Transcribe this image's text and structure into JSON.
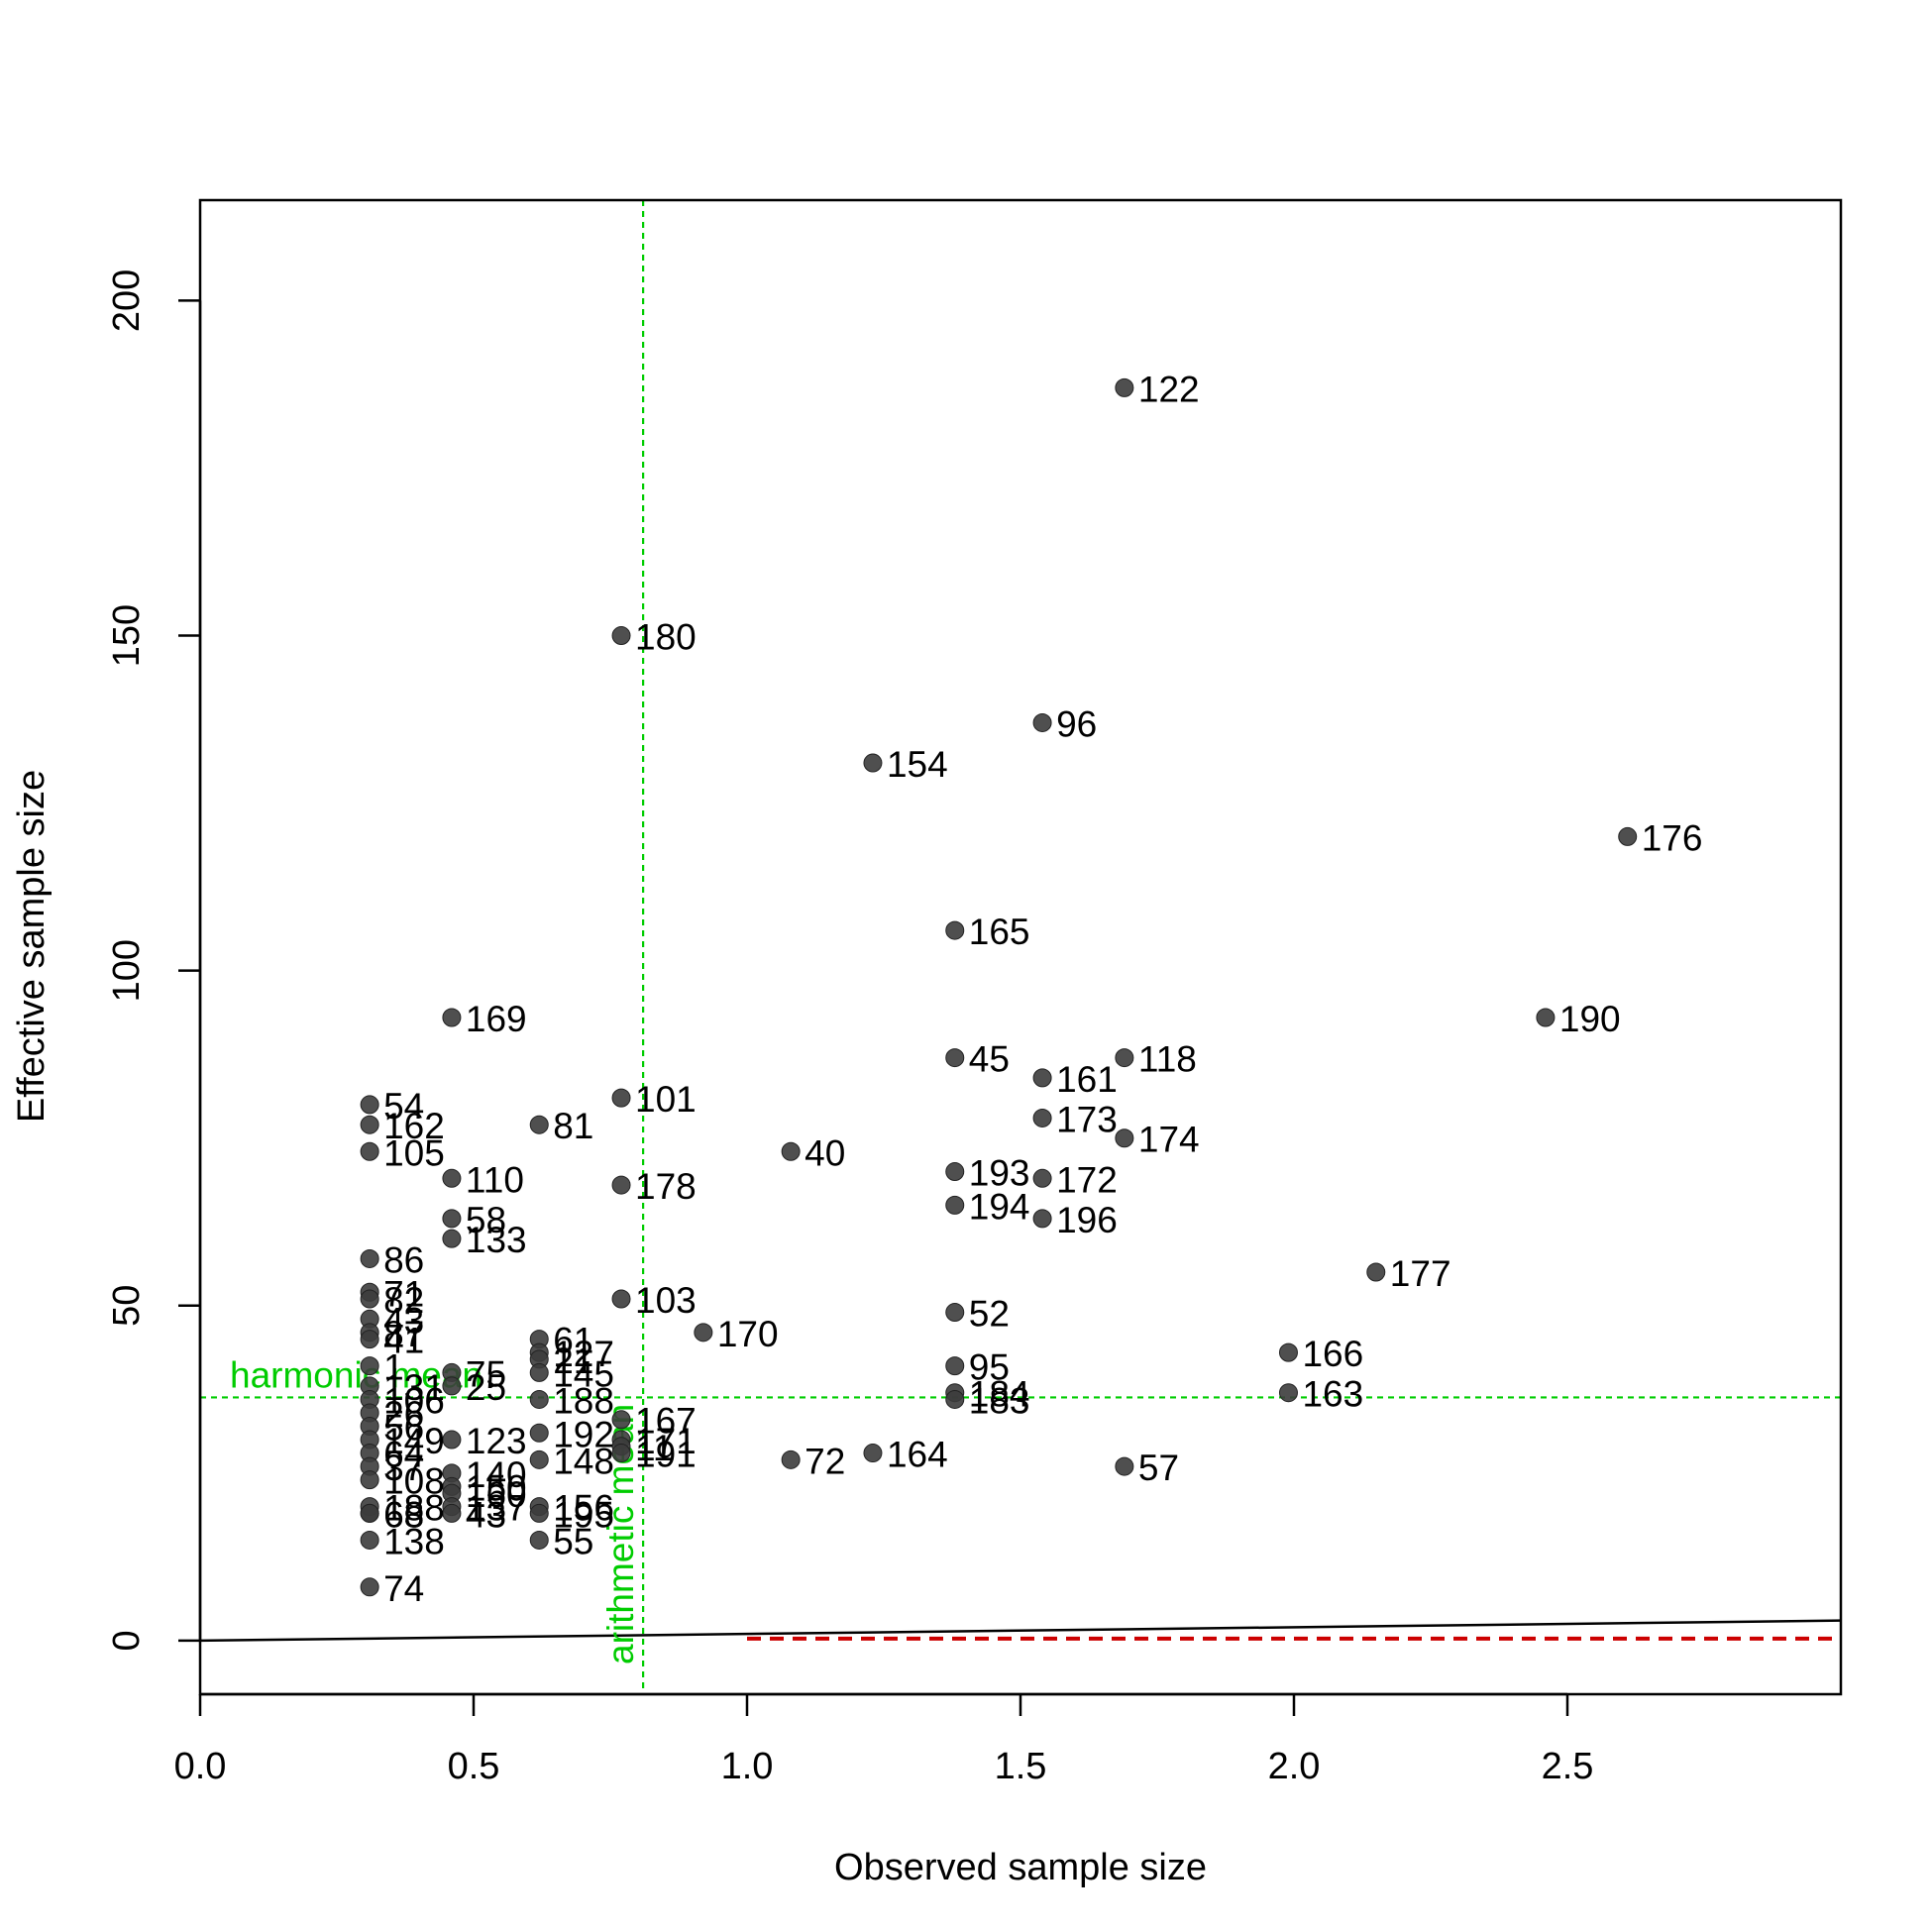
{
  "chart_data": {
    "type": "scatter",
    "title": "",
    "xlabel": "Observed sample size",
    "ylabel": "Effective sample size",
    "xlim": [
      0,
      3.0
    ],
    "ylim": [
      -8,
      215
    ],
    "xticks": [
      0.0,
      0.5,
      1.0,
      1.5,
      2.0,
      2.5
    ],
    "xtick_labels": [
      "0.0",
      "0.5",
      "1.0",
      "1.5",
      "2.0",
      "2.5"
    ],
    "yticks": [
      0,
      50,
      100,
      150,
      200
    ],
    "ytick_labels": [
      "0",
      "50",
      "100",
      "150",
      "200"
    ],
    "grid": false,
    "point_color": "#3c3c3c",
    "reference_color": "#00cc00",
    "points": [
      {
        "id": "122",
        "x": 1.69,
        "y": 187
      },
      {
        "id": "180",
        "x": 0.77,
        "y": 150
      },
      {
        "id": "96",
        "x": 1.54,
        "y": 137
      },
      {
        "id": "154",
        "x": 1.23,
        "y": 131
      },
      {
        "id": "176",
        "x": 2.61,
        "y": 120
      },
      {
        "id": "165",
        "x": 1.38,
        "y": 106
      },
      {
        "id": "169",
        "x": 0.46,
        "y": 93
      },
      {
        "id": "190",
        "x": 2.46,
        "y": 93
      },
      {
        "id": "45",
        "x": 1.38,
        "y": 87
      },
      {
        "id": "118",
        "x": 1.69,
        "y": 87
      },
      {
        "id": "161",
        "x": 1.54,
        "y": 84
      },
      {
        "id": "101",
        "x": 0.77,
        "y": 81
      },
      {
        "id": "54",
        "x": 0.31,
        "y": 80
      },
      {
        "id": "173",
        "x": 1.54,
        "y": 78
      },
      {
        "id": "81",
        "x": 0.62,
        "y": 77
      },
      {
        "id": "162",
        "x": 0.31,
        "y": 77
      },
      {
        "id": "174",
        "x": 1.69,
        "y": 75
      },
      {
        "id": "40",
        "x": 1.08,
        "y": 73
      },
      {
        "id": "105",
        "x": 0.31,
        "y": 73
      },
      {
        "id": "110",
        "x": 0.46,
        "y": 69
      },
      {
        "id": "193",
        "x": 1.38,
        "y": 70
      },
      {
        "id": "172",
        "x": 1.54,
        "y": 69
      },
      {
        "id": "178",
        "x": 0.77,
        "y": 68
      },
      {
        "id": "194",
        "x": 1.38,
        "y": 65
      },
      {
        "id": "58",
        "x": 0.46,
        "y": 63
      },
      {
        "id": "196",
        "x": 1.54,
        "y": 63
      },
      {
        "id": "133",
        "x": 0.46,
        "y": 60
      },
      {
        "id": "86",
        "x": 0.31,
        "y": 57
      },
      {
        "id": "177",
        "x": 2.15,
        "y": 55
      },
      {
        "id": "71",
        "x": 0.31,
        "y": 52
      },
      {
        "id": "82",
        "x": 0.31,
        "y": 51
      },
      {
        "id": "103",
        "x": 0.77,
        "y": 51
      },
      {
        "id": "52",
        "x": 1.38,
        "y": 49
      },
      {
        "id": "43",
        "x": 0.31,
        "y": 48
      },
      {
        "id": "87",
        "x": 0.31,
        "y": 46
      },
      {
        "id": "170",
        "x": 0.92,
        "y": 46
      },
      {
        "id": "61",
        "x": 0.62,
        "y": 45
      },
      {
        "id": "41",
        "x": 0.31,
        "y": 45
      },
      {
        "id": "166",
        "x": 1.99,
        "y": 43
      },
      {
        "id": "127",
        "x": 0.62,
        "y": 43
      },
      {
        "id": "21",
        "x": 0.62,
        "y": 42
      },
      {
        "id": "1",
        "x": 0.31,
        "y": 41
      },
      {
        "id": "95",
        "x": 1.38,
        "y": 41
      },
      {
        "id": "145",
        "x": 0.62,
        "y": 40
      },
      {
        "id": "75",
        "x": 0.46,
        "y": 40
      },
      {
        "id": "131",
        "x": 0.31,
        "y": 38
      },
      {
        "id": "25",
        "x": 0.46,
        "y": 38
      },
      {
        "id": "163",
        "x": 1.99,
        "y": 37
      },
      {
        "id": "184",
        "x": 1.38,
        "y": 37
      },
      {
        "id": "183",
        "x": 1.38,
        "y": 36
      },
      {
        "id": "188",
        "x": 0.62,
        "y": 36
      },
      {
        "id": "106",
        "x": 0.31,
        "y": 36
      },
      {
        "id": "26",
        "x": 0.31,
        "y": 34
      },
      {
        "id": "167",
        "x": 0.77,
        "y": 33
      },
      {
        "id": "56",
        "x": 0.31,
        "y": 32
      },
      {
        "id": "192",
        "x": 0.62,
        "y": 31
      },
      {
        "id": "171",
        "x": 0.77,
        "y": 30
      },
      {
        "id": "123",
        "x": 0.46,
        "y": 30
      },
      {
        "id": "149",
        "x": 0.31,
        "y": 30
      },
      {
        "id": "11",
        "x": 0.77,
        "y": 29
      },
      {
        "id": "191",
        "x": 0.77,
        "y": 28
      },
      {
        "id": "64",
        "x": 0.31,
        "y": 28
      },
      {
        "id": "148",
        "x": 0.62,
        "y": 27
      },
      {
        "id": "72",
        "x": 1.08,
        "y": 27
      },
      {
        "id": "164",
        "x": 1.23,
        "y": 28
      },
      {
        "id": "57",
        "x": 1.69,
        "y": 26
      },
      {
        "id": "37",
        "x": 0.31,
        "y": 26
      },
      {
        "id": "140",
        "x": 0.46,
        "y": 25
      },
      {
        "id": "108",
        "x": 0.31,
        "y": 24
      },
      {
        "id": "150",
        "x": 0.46,
        "y": 23
      },
      {
        "id": "160",
        "x": 0.46,
        "y": 22
      },
      {
        "id": "188b",
        "x": 0.31,
        "y": 20
      },
      {
        "id": "68",
        "x": 0.31,
        "y": 19
      },
      {
        "id": "137",
        "x": 0.46,
        "y": 20
      },
      {
        "id": "43b",
        "x": 0.46,
        "y": 19
      },
      {
        "id": "156",
        "x": 0.62,
        "y": 20
      },
      {
        "id": "195",
        "x": 0.62,
        "y": 19
      },
      {
        "id": "63",
        "x": 0.31,
        "y": 19
      },
      {
        "id": "55",
        "x": 0.62,
        "y": 15
      },
      {
        "id": "138",
        "x": 0.31,
        "y": 15
      },
      {
        "id": "74",
        "x": 0.31,
        "y": 8
      }
    ],
    "point_labels": {
      "188b": "188",
      "43b": "43"
    },
    "reference_lines": [
      {
        "name": "harmonic mean",
        "orientation": "horizontal",
        "value": 36.3
      },
      {
        "name": "arithmetic mean",
        "orientation": "vertical",
        "value": 0.81
      }
    ],
    "lines": [
      {
        "style": "solid",
        "color": "#000000",
        "x": [
          0.0,
          3.0
        ],
        "y": [
          0.0,
          3.0
        ]
      },
      {
        "style": "dashed",
        "color": "#cc0000",
        "x": [
          1.0,
          3.0
        ],
        "y": [
          0.3,
          0.3
        ]
      }
    ]
  }
}
